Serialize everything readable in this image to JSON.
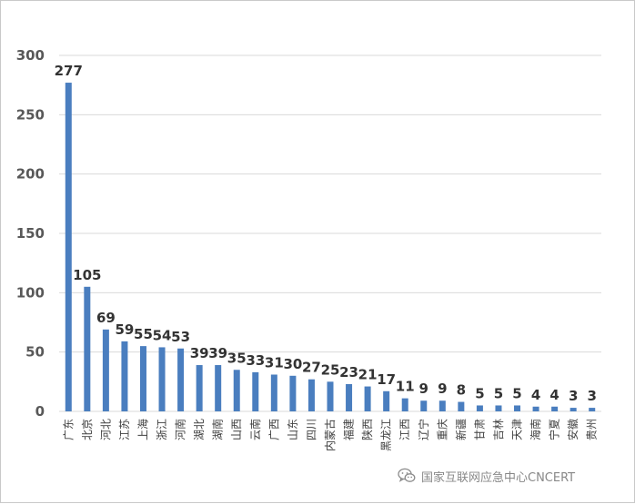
{
  "chart_data": {
    "type": "bar",
    "title": "",
    "xlabel": "",
    "ylabel": "",
    "ylim": [
      0,
      300
    ],
    "yticks": [
      0,
      50,
      100,
      150,
      200,
      250,
      300
    ],
    "grid": true,
    "bar_color": "#4a7ebf",
    "categories": [
      "广东",
      "北京",
      "河北",
      "江苏",
      "上海",
      "浙江",
      "河南",
      "湖北",
      "湖南",
      "山西",
      "云南",
      "广西",
      "山东",
      "四川",
      "内蒙古",
      "福建",
      "陕西",
      "黑龙江",
      "江西",
      "辽宁",
      "重庆",
      "新疆",
      "甘肃",
      "吉林",
      "天津",
      "海南",
      "宁夏",
      "安徽",
      "贵州"
    ],
    "values": [
      277,
      105,
      69,
      59,
      55,
      54,
      53,
      39,
      39,
      35,
      33,
      31,
      30,
      27,
      25,
      23,
      21,
      17,
      11,
      9,
      9,
      8,
      5,
      5,
      5,
      4,
      4,
      3,
      3
    ]
  },
  "watermark": {
    "icon": "wechat-icon",
    "text": "国家互联网应急中心CNCERT"
  }
}
